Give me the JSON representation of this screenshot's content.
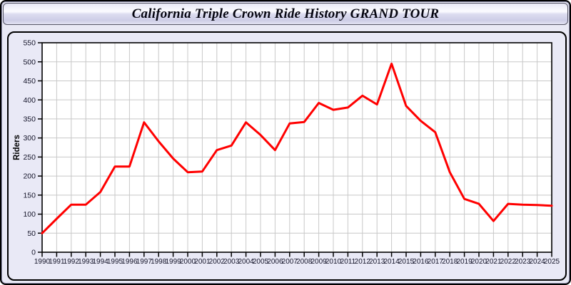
{
  "window": {
    "title": "California Triple Crown Ride History GRAND TOUR"
  },
  "colors": {
    "series_line": "#ff0000",
    "gridline": "#c8c8c8",
    "plot_background": "#ffffff",
    "plot_border": "#000000",
    "tick_label": "#15152a",
    "panel_background": "#e9e9f6"
  },
  "chart_data": {
    "type": "line",
    "title": "California Triple Crown Ride History GRAND TOUR",
    "xlabel": "",
    "ylabel": "Riders",
    "ylim": [
      0,
      550
    ],
    "ytick_step": 50,
    "grid": true,
    "legend_position": "none",
    "x": [
      1990,
      1991,
      1992,
      1993,
      1994,
      1995,
      1996,
      1997,
      1998,
      1999,
      2000,
      2001,
      2002,
      2003,
      2004,
      2005,
      2006,
      2007,
      2008,
      2009,
      2010,
      2011,
      2012,
      2013,
      2014,
      2015,
      2016,
      2017,
      2018,
      2019,
      2020,
      2021,
      2022,
      2023,
      2024,
      2025
    ],
    "series": [
      {
        "name": "Riders",
        "values": [
          50,
          88,
          125,
          125,
          158,
          225,
          225,
          341,
          291,
          246,
          210,
          212,
          268,
          280,
          341,
          308,
          268,
          338,
          342,
          392,
          374,
          380,
          411,
          388,
          495,
          384,
          345,
          315,
          210,
          140,
          127,
          82,
          127,
          125,
          124,
          122
        ]
      }
    ]
  }
}
